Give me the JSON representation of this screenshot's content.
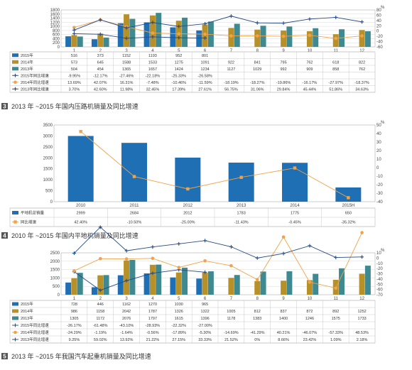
{
  "colors": {
    "c2015": "#1f6fb5",
    "c2014": "#b89028",
    "c2013": "#3f8a90",
    "orange": "#f0a34a",
    "navy": "#264a86",
    "grid": "#cfcfcf"
  },
  "chart_data": [
    {
      "type": "bar",
      "categories": [
        "1",
        "2",
        "3",
        "4",
        "5",
        "6",
        "7",
        "8",
        "9",
        "10",
        "11",
        "12"
      ],
      "ylim": [
        0,
        1800
      ],
      "yticks": [
        "0",
        "200",
        "400",
        "600",
        "800",
        "1000",
        "1200",
        "1400",
        "1600",
        "1800"
      ],
      "y2lim": [
        -60,
        80
      ],
      "y2ticks": [
        "80",
        "60",
        "40",
        "20",
        "0",
        "-20",
        "-40",
        "-60"
      ],
      "y2unit": "%",
      "series": [
        {
          "name": "2015年",
          "values": [
            516,
            373,
            1152,
            1193,
            952,
            801,
            null,
            null,
            null,
            null,
            null,
            null
          ]
        },
        {
          "name": "2014年",
          "values": [
            573,
            645,
            1588,
            1533,
            1275,
            1091,
            922,
            841,
            795,
            762,
            618,
            822
          ]
        },
        {
          "name": "2013年",
          "values": [
            504,
            454,
            1365,
            1657,
            1424,
            1234,
            1127,
            1029,
            992,
            909,
            858,
            762
          ]
        }
      ],
      "lines": [
        {
          "name": "2015年同比增速",
          "values": [
            -9.95,
            -12.17,
            -27.46,
            -22.18,
            -25.33,
            -26.58,
            null,
            null,
            null,
            null,
            null,
            null
          ]
        },
        {
          "name": "2014年同比增速",
          "values": [
            13.69,
            42.07,
            16.31,
            -7.48,
            -10.46,
            -11.59,
            -18.19,
            -18.27,
            -19.86,
            -16.17,
            -27.97,
            -18.37
          ]
        },
        {
          "name": "2013年同比增速",
          "values": [
            3.7,
            42.6,
            11.98,
            32.45,
            17.39,
            27.61,
            56.75,
            31.06,
            29.84,
            45.44,
            51.86,
            34.63
          ]
        }
      ],
      "table": [
        [
          "516",
          "373",
          "1152",
          "1193",
          "952",
          "801",
          "",
          "",
          "",
          "",
          "",
          ""
        ],
        [
          "573",
          "645",
          "1588",
          "1533",
          "1275",
          "1091",
          "922",
          "841",
          "795",
          "762",
          "618",
          "822"
        ],
        [
          "504",
          "454",
          "1365",
          "1657",
          "1424",
          "1234",
          "1127",
          "1029",
          "992",
          "909",
          "858",
          "762"
        ],
        [
          "-9.95%",
          "-12.17%",
          "-27.46%",
          "-22.18%",
          "-25.33%",
          "-26.58%",
          "",
          "",
          "",
          "",
          "",
          ""
        ],
        [
          "13.69%",
          "42.07%",
          "16.31%",
          "-7.48%",
          "-10.46%",
          "-11.59%",
          "-18.19%",
          "-18.27%",
          "-19.86%",
          "-16.17%",
          "-27.97%",
          "-18.37%"
        ],
        [
          "3.70%",
          "42.60%",
          "11.98%",
          "32.45%",
          "17.39%",
          "27.61%",
          "56.75%",
          "31.06%",
          "29.84%",
          "45.44%",
          "51.86%",
          "34.63%"
        ]
      ]
    },
    {
      "type": "bar",
      "categories": [
        "2010",
        "2011",
        "2012",
        "2013",
        "2014",
        "2015H"
      ],
      "ylim": [
        0,
        3500
      ],
      "yticks": [
        "0",
        "500",
        "1000",
        "1500",
        "2000",
        "2500",
        "3000",
        "3500"
      ],
      "y2lim": [
        -40,
        50
      ],
      "y2ticks": [
        "50",
        "40",
        "30",
        "20",
        "10",
        "0",
        "-10",
        "-20",
        "-30",
        "-40"
      ],
      "y2unit": "%",
      "series": [
        {
          "name": "平地机总销量",
          "values": [
            2999,
            2684,
            2012,
            1783,
            1775,
            650
          ]
        }
      ],
      "lines": [
        {
          "name": "同比增速",
          "values": [
            42.4,
            -10.5,
            -25.0,
            -11.43,
            -0.45,
            -35.32
          ]
        }
      ],
      "table": [
        [
          "2999",
          "2684",
          "2012",
          "1783",
          "1775",
          "650"
        ],
        [
          "42.40%",
          "-10.50%",
          "-25.00%",
          "-11.43%",
          "-0.45%",
          "-35.32%"
        ]
      ]
    },
    {
      "type": "bar",
      "categories": [
        "1",
        "2",
        "3",
        "4",
        "5",
        "6",
        "7",
        "8",
        "9",
        "10",
        "11",
        "12"
      ],
      "ylim": [
        0,
        2500
      ],
      "yticks": [
        "0",
        "500",
        "1000",
        "1500",
        "2000",
        "2500"
      ],
      "y2lim": [
        -70,
        10
      ],
      "y2ticks": [
        "10",
        "0",
        "-10",
        "-20",
        "-30",
        "-40",
        "-50",
        "-60",
        "-70"
      ],
      "y2unit": "%",
      "series": [
        {
          "name": "2015年",
          "values": [
            728,
            446,
            1162,
            1270,
            1030,
            965,
            null,
            null,
            null,
            null,
            null,
            null
          ]
        },
        {
          "name": "2014年",
          "values": [
            986,
            1158,
            2042,
            1787,
            1326,
            1322,
            1005,
            812,
            837,
            872,
            892,
            1252
          ]
        },
        {
          "name": "2013年",
          "values": [
            1305,
            1172,
            2076,
            1797,
            1615,
            1396,
            1178,
            1383,
            1400,
            1246,
            1575,
            1733
          ]
        }
      ],
      "lines": [
        {
          "name": "2015年同比增速",
          "values": [
            -26.17,
            -61.48,
            -43.1,
            -28.93,
            -22.32,
            -27.0,
            null,
            null,
            null,
            null,
            null,
            null
          ]
        },
        {
          "name": "2014年同比增速",
          "values": [
            -24.29,
            -1.19,
            -1.64,
            -0.56,
            -17.89,
            -5.3,
            -14.69,
            -41.29,
            40.21,
            -46.07,
            -57.33,
            48.53
          ]
        },
        {
          "name": "2013年同比增速",
          "values": [
            9.25,
            59.02,
            13.92,
            21.22,
            27.15,
            33.33,
            21.52,
            0,
            8.66,
            23.42,
            1.09,
            2.18
          ]
        }
      ],
      "table": [
        [
          "728",
          "446",
          "1162",
          "1270",
          "1030",
          "965",
          "",
          "",
          "",
          "",
          "",
          ""
        ],
        [
          "986",
          "1158",
          "2042",
          "1787",
          "1326",
          "1322",
          "1005",
          "812",
          "837",
          "872",
          "892",
          "1252"
        ],
        [
          "1305",
          "1172",
          "2076",
          "1797",
          "1615",
          "1396",
          "1178",
          "1383",
          "1400",
          "1246",
          "1575",
          "1733"
        ],
        [
          "-26.17%",
          "-61.48%",
          "-43.10%",
          "-28.93%",
          "-22.32%",
          "-27.00%",
          "",
          "",
          "",
          "",
          "",
          ""
        ],
        [
          "-24.29%",
          "-1.19%",
          "-1.64%",
          "-0.56%",
          "-17.89%",
          "-5.30%",
          "-14.69%",
          "-41.29%",
          "40.21%",
          "-46.07%",
          "-57.33%",
          "48.53%"
        ],
        [
          "9.25%",
          "59.02%",
          "13.92%",
          "21.22%",
          "27.15%",
          "33.33%",
          "21.52%",
          "0%",
          "8.66%",
          "23.42%",
          "1.09%",
          "2.18%"
        ]
      ]
    }
  ],
  "captions": [
    {
      "num": "3",
      "text": "2013 年 ~2015 年国内压路机销量及同比增速"
    },
    {
      "num": "4",
      "text": "2010 年 ~2015 年国内平地机销量及同比增速"
    },
    {
      "num": "5",
      "text": "2013 年 ~2015 年我国汽车起重机销量及同比增速"
    }
  ]
}
